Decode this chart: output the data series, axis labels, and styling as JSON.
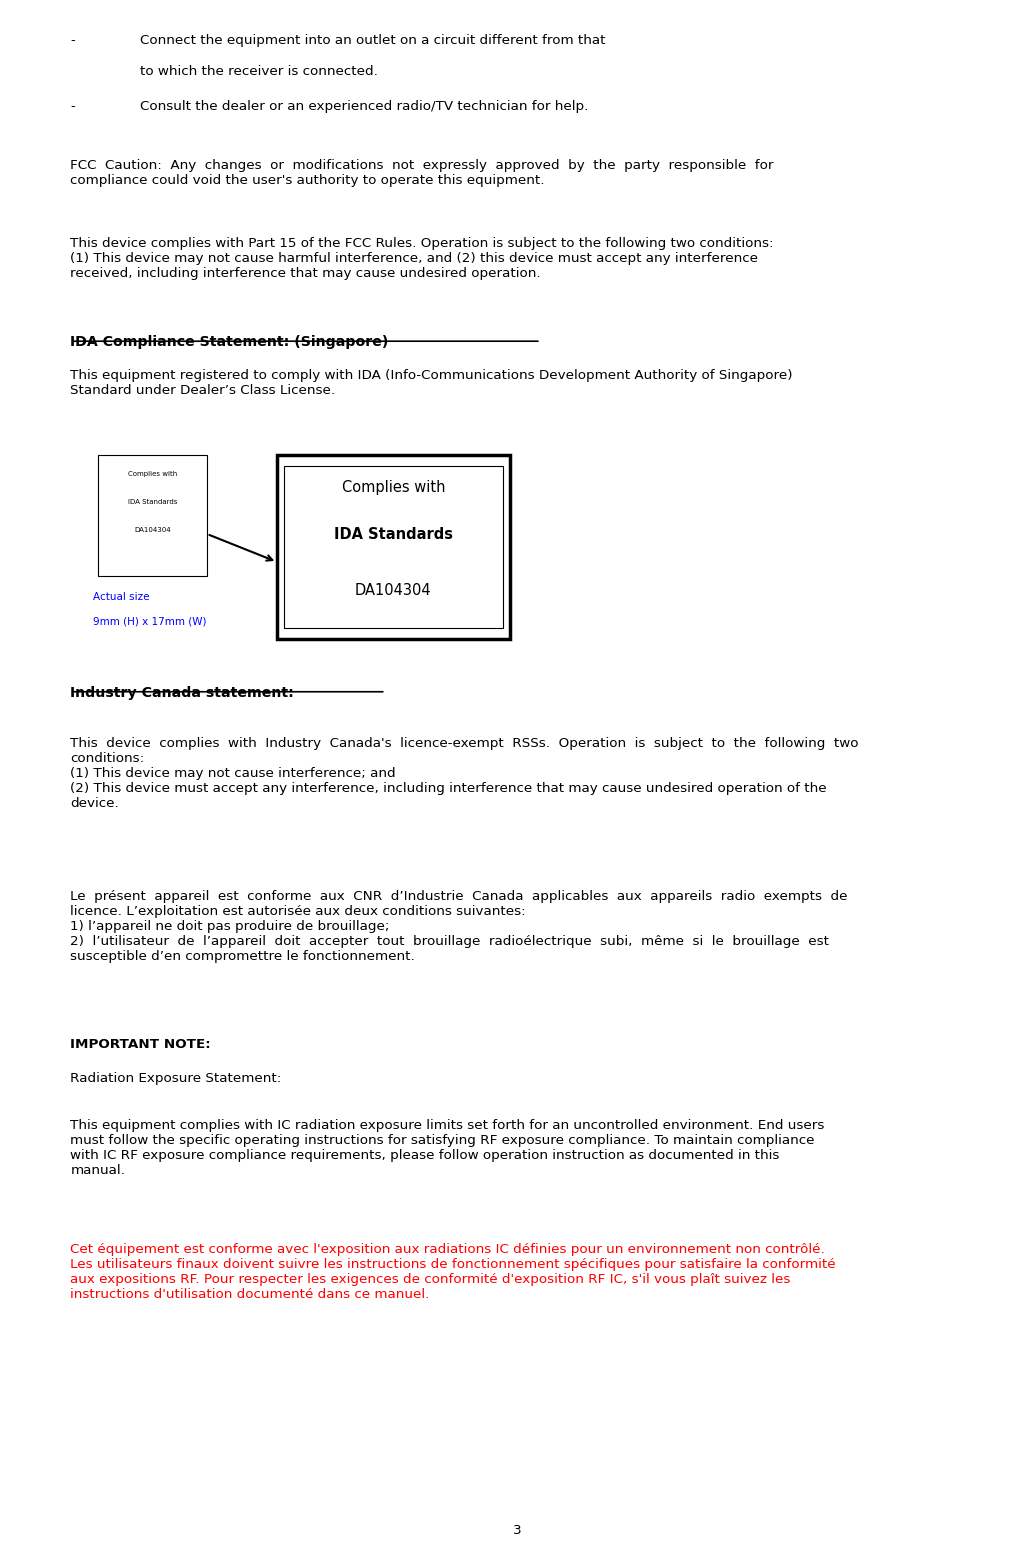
{
  "bg_color": "#ffffff",
  "text_color": "#000000",
  "red_color": "#ff0000",
  "blue_color": "#0000ff",
  "page_number": "3",
  "lm": 0.068,
  "indent": 0.135,
  "fs": 9.7,
  "line1_bullet": "-",
  "line1_text": "Connect the equipment into an outlet on a circuit different from that",
  "line1b_text": "to which the receiver is connected.",
  "line2_bullet": "-",
  "line2_text": "Consult the dealer or an experienced radio/TV technician for help.",
  "fcc_caution": "FCC  Caution:  Any  changes  or  modifications  not  expressly  approved  by  the  party  responsible  for\ncompliance could void the user's authority to operate this equipment.",
  "fcc_part15": "This device complies with Part 15 of the FCC Rules. Operation is subject to the following two conditions:\n(1) This device may not cause harmful interference, and (2) this device must accept any interference\nreceived, including interference that may cause undesired operation.",
  "ida_heading": "IDA Compliance Statement: (Singapore)",
  "ida_body": "This equipment registered to comply with IDA (Info-Communications Development Authority of Singapore)\nStandard under Dealer’s Class License.",
  "ida_label_small_line1": "Complies with",
  "ida_label_small_line2": "IDA Standards",
  "ida_label_small_line3": "DA104304",
  "ida_label_big_line1": "Complies with",
  "ida_label_big_line2": "IDA Standards",
  "ida_label_big_line3": "DA104304",
  "actual_size_line1": "Actual size",
  "actual_size_line2": "9mm (H) x 17mm (W)",
  "ic_heading": "Industry Canada statement:",
  "ic_body1": "This  device  complies  with  Industry  Canada's  licence-exempt  RSSs.  Operation  is  subject  to  the  following  two\nconditions:\n(1) This device may not cause interference; and\n(2) This device must accept any interference, including interference that may cause undesired operation of the\ndevice.",
  "ic_body2": "Le  présent  appareil  est  conforme  aux  CNR  d’Industrie  Canada  applicables  aux  appareils  radio  exempts  de\nlicence. L’exploitation est autorisée aux deux conditions suivantes:\n1) l’appareil ne doit pas produire de brouillage;\n2)  l’utilisateur  de  l’appareil  doit  accepter  tout  brouillage  radioélectrique  subi,  même  si  le  brouillage  est\nsusceptible d’en compromettre le fonctionnement.",
  "important_note_bold": "IMPORTANT NOTE:",
  "radiation_label": "Radiation Exposure Statement:",
  "radiation_body_en": "This equipment complies with IC radiation exposure limits set forth for an uncontrolled environment. End users\nmust follow the specific operating instructions for satisfying RF exposure compliance. To maintain compliance\nwith IC RF exposure compliance requirements, please follow operation instruction as documented in this\nmanual.",
  "radiation_body_fr": "Cet équipement est conforme avec l'exposition aux radiations IC définies pour un environnement non contrôlé.\nLes utilisateurs finaux doivent suivre les instructions de fonctionnement spécifiques pour satisfaire la conformité\naux expositions RF. Pour respecter les exigences de conformité d'exposition RF IC, s'il vous plaît suivez les\ninstructions d'utilisation documenté dans ce manuel."
}
